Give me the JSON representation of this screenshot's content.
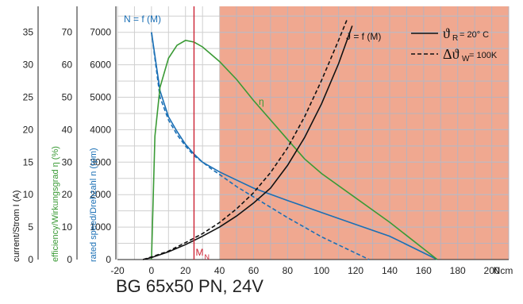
{
  "chart_data": {
    "type": "line",
    "caption": "BG 65x50 PN, 24V",
    "x_unit": "Ncm",
    "xlim": [
      -20,
      210
    ],
    "x_ticks": [
      "-20",
      "0",
      "20",
      "40",
      "60",
      "80",
      "100",
      "120",
      "140",
      "160",
      "180",
      "200"
    ],
    "y_axes": [
      {
        "label": "current/Strom I (A)",
        "ticks": [
          "0",
          "5",
          "10",
          "15",
          "20",
          "25",
          "30",
          "35"
        ],
        "range": [
          0,
          39
        ],
        "color": "#111111"
      },
      {
        "label": "efficiency/Wirkungsgrad η (%)",
        "ticks": [
          "0",
          "10",
          "20",
          "30",
          "40",
          "50",
          "60",
          "70"
        ],
        "range": [
          0,
          78
        ],
        "color": "#3a9a35"
      },
      {
        "label": "rated speed/Drehzahl n (rpm)",
        "ticks": [
          "0",
          "1000",
          "2000",
          "3000",
          "4000",
          "5000",
          "6000",
          "7000"
        ],
        "range": [
          0,
          7800
        ],
        "color": "#1a6fb5"
      }
    ],
    "shaded_region": {
      "x_from": 40,
      "color": "#f0a890"
    },
    "rated_torque": {
      "x": 25,
      "label": "M",
      "sub": "N",
      "color": "#cc2233"
    },
    "series": [
      {
        "name": "N = f (M)",
        "axis": "speed",
        "style": "solid",
        "color": "#1a6fb5",
        "x": [
          0,
          5,
          10,
          15,
          20,
          25,
          30,
          35,
          40,
          50,
          60,
          80,
          100,
          120,
          140,
          168
        ],
        "y": [
          7000,
          5200,
          4400,
          3950,
          3550,
          3250,
          3000,
          2850,
          2700,
          2450,
          2200,
          1820,
          1450,
          1080,
          720,
          0
        ]
      },
      {
        "name": "",
        "axis": "speed",
        "style": "dashed",
        "color": "#1a6fb5",
        "x": [
          0,
          5,
          10,
          15,
          20,
          25,
          30,
          35,
          40,
          50,
          60,
          80,
          100,
          128
        ],
        "y": [
          7000,
          5000,
          4300,
          3850,
          3500,
          3200,
          3000,
          2800,
          2620,
          2250,
          1930,
          1290,
          700,
          0
        ]
      },
      {
        "name": "η",
        "axis": "efficiency",
        "style": "solid",
        "color": "#3a9a35",
        "x": [
          0,
          2,
          5,
          10,
          15,
          20,
          25,
          30,
          40,
          50,
          60,
          70,
          80,
          90,
          100,
          120,
          140,
          168
        ],
        "y": [
          0,
          38,
          53,
          62,
          66,
          67.5,
          67,
          65.5,
          61,
          55.5,
          49,
          43,
          37,
          31,
          26.5,
          19,
          11.5,
          0
        ]
      },
      {
        "name": "J = f (M)",
        "axis": "current",
        "style": "solid",
        "color": "#111111",
        "x": [
          -5,
          0,
          10,
          20,
          30,
          40,
          50,
          60,
          70,
          80,
          90,
          100,
          110,
          118
        ],
        "y": [
          0,
          0.3,
          1.2,
          2.3,
          3.6,
          5.0,
          6.7,
          8.7,
          11.0,
          14.5,
          18.8,
          24.0,
          30.2,
          36.0
        ]
      },
      {
        "name": "",
        "axis": "current",
        "style": "dashed",
        "color": "#111111",
        "x": [
          -5,
          0,
          10,
          20,
          30,
          40,
          50,
          60,
          70,
          80,
          90,
          100,
          110,
          115
        ],
        "y": [
          0,
          0.4,
          1.3,
          2.6,
          4.0,
          5.7,
          7.8,
          10.3,
          13.4,
          17.2,
          22.0,
          27.6,
          33.8,
          37.0
        ]
      }
    ],
    "legend": {
      "position": "top-right",
      "entries": [
        {
          "style": "solid",
          "symbol": "ϑ",
          "sub": "R",
          "text": " = 20° C"
        },
        {
          "style": "dashed",
          "symbol": "Δϑ",
          "sub": "W",
          "text": " = 100K"
        }
      ]
    },
    "annotation_J": "J = f (M)",
    "annotation_N": "N = f (M)",
    "annotation_eta": "η"
  }
}
